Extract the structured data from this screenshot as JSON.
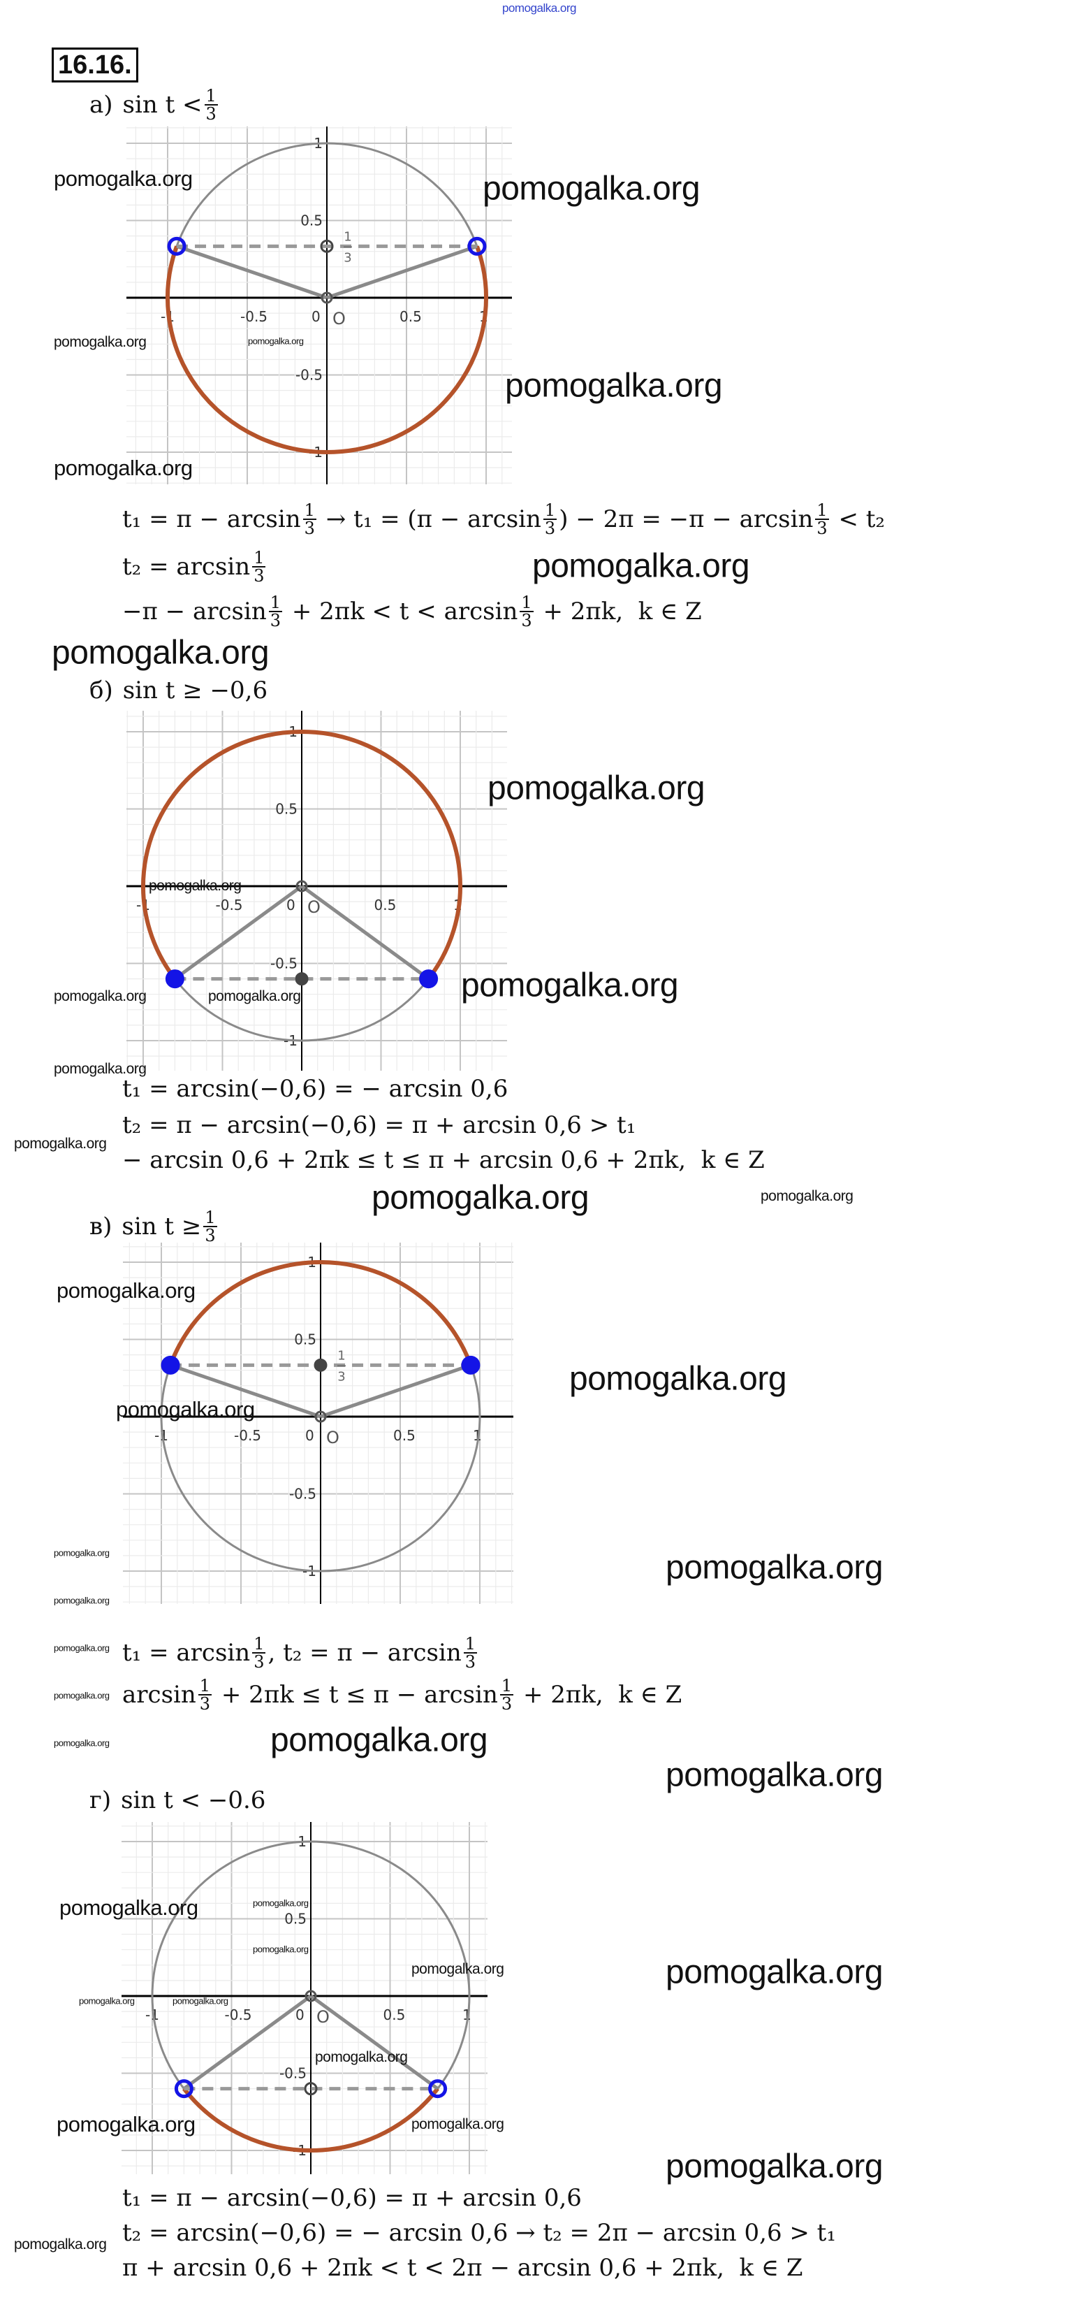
{
  "problem_number": "16.16.",
  "watermark_text": "pomogalka.org",
  "watermarks": [
    "pomogalka.org",
    "pomogalka.org",
    "pomogalka.org",
    "pomogalka.org",
    "pomogalka.org",
    "pomogalka.org",
    "pomogalka.org",
    "pomogalka.org",
    "pomogalka.org",
    "pomogalka.org",
    "pomogalka.org",
    "pomogalka.org",
    "pomogalka.org",
    "pomogalka.org",
    "pomogalka.org",
    "pomogalka.org",
    "pomogalka.org",
    "pomogalka.org",
    "pomogalka.org",
    "pomogalka.org",
    "pomogalka.org",
    "pomogalka.org",
    "pomogalka.org",
    "pomogalka.org",
    "pomogalka.org",
    "pomogalka.org",
    "pomogalka.org",
    "pomogalka.org",
    "pomogalka.org",
    "pomogalka.org",
    "pomogalka.org",
    "pomogalka.org",
    "pomogalka.org",
    "pomogalka.org",
    "pomogalka.org",
    "pomogalka.org",
    "pomogalka.org",
    "pomogalka.org",
    "pomogalka.org",
    "pomogalka.org",
    "pomogalka.org"
  ],
  "colors": {
    "solution_arc": "#b5532a",
    "circle": "#8a8a8a",
    "point": "#1414e6",
    "axis": "#000000",
    "grid_major": "#c4c4c4",
    "grid_minor": "#ebebeb"
  },
  "graph_labels": {
    "x_ticks": [
      "-1",
      "-0.5",
      "0",
      "0.5",
      "1"
    ],
    "y_ticks": [
      "1",
      "0.5",
      "-0.5",
      "-1"
    ],
    "origin": "O",
    "third": {
      "n": "1",
      "d": "3"
    }
  },
  "parts": [
    {
      "label": "а)",
      "condition": [
        "sin t <",
        {
          "n": "1",
          "d": "3"
        }
      ],
      "graph": {
        "boundary_sin": 0.3333,
        "solution": "below",
        "points": "hollow",
        "show_third_label": true
      },
      "lines": [
        [
          "t₁ = π − arcsin",
          {
            "n": "1",
            "d": "3"
          },
          " → t₁ = (π − arcsin",
          {
            "n": "1",
            "d": "3"
          },
          ") − 2π = −π − arcsin",
          {
            "n": "1",
            "d": "3"
          },
          " < t₂"
        ],
        [
          "t₂ = arcsin",
          {
            "n": "1",
            "d": "3"
          }
        ],
        [
          "−π − arcsin",
          {
            "n": "1",
            "d": "3"
          },
          " + 2πk < t < arcsin",
          {
            "n": "1",
            "d": "3"
          },
          " + 2πk,  k ∈ Z"
        ]
      ]
    },
    {
      "label": "б)",
      "condition": [
        "sin t ≥ −0,6"
      ],
      "graph": {
        "boundary_sin": -0.6,
        "solution": "above",
        "points": "filled",
        "show_third_label": false
      },
      "lines": [
        [
          "t₁ = arcsin(−0,6) = − arcsin 0,6"
        ],
        [
          "t₂ = π − arcsin(−0,6) = π + arcsin 0,6 > t₁"
        ],
        [
          "− arcsin 0,6 + 2πk ≤ t ≤ π + arcsin 0,6 + 2πk,  k ∈ Z"
        ]
      ]
    },
    {
      "label": "в)",
      "condition": [
        "sin t ≥",
        {
          "n": "1",
          "d": "3"
        }
      ],
      "graph": {
        "boundary_sin": 0.3333,
        "solution": "above",
        "points": "filled",
        "show_third_label": true
      },
      "lines": [
        [
          "t₁ = arcsin",
          {
            "n": "1",
            "d": "3"
          },
          ", t₂ = π − arcsin",
          {
            "n": "1",
            "d": "3"
          }
        ],
        [
          "arcsin",
          {
            "n": "1",
            "d": "3"
          },
          " + 2πk ≤ t ≤ π − arcsin",
          {
            "n": "1",
            "d": "3"
          },
          " + 2πk,  k ∈ Z"
        ]
      ]
    },
    {
      "label": "г)",
      "condition": [
        "sin t < −0.6"
      ],
      "graph": {
        "boundary_sin": -0.6,
        "solution": "below",
        "points": "hollow",
        "show_third_label": false
      },
      "lines": [
        [
          "t₁ = π − arcsin(−0,6) = π + arcsin 0,6"
        ],
        [
          "t₂ = arcsin(−0,6) = − arcsin 0,6 → t₂ = 2π − arcsin 0,6 > t₁"
        ],
        [
          "π + arcsin 0,6 + 2πk < t < 2π − arcsin 0,6 + 2πk,  k ∈ Z"
        ]
      ]
    }
  ]
}
